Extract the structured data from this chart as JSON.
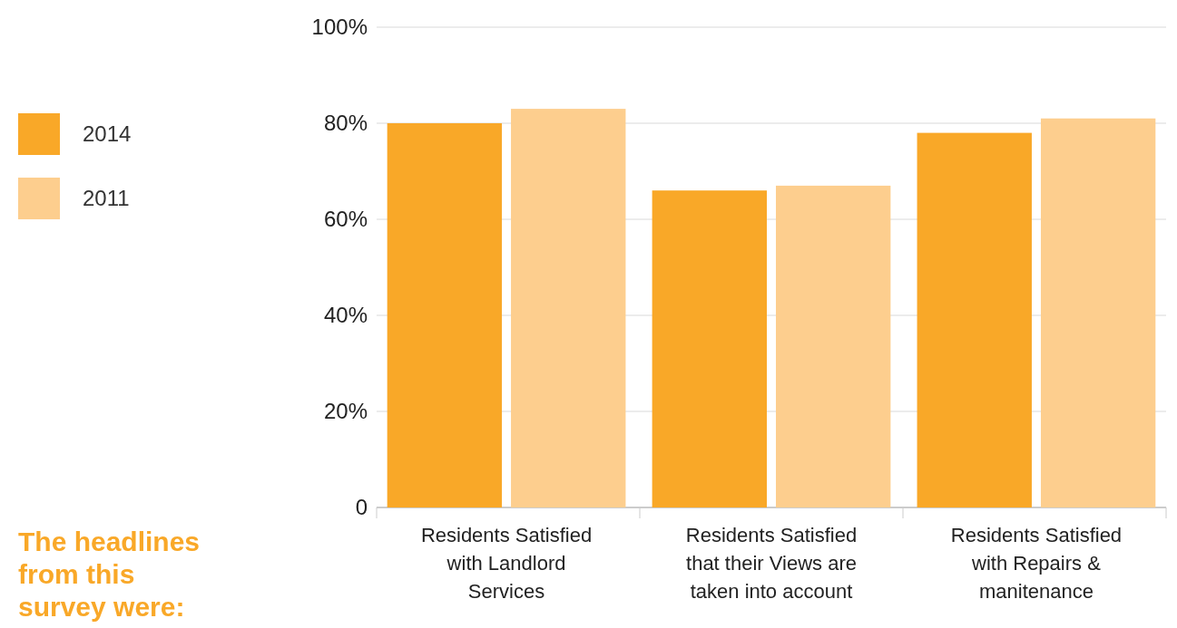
{
  "chart_data": {
    "type": "bar",
    "categories": [
      "Residents Satisfied with Landlord Services",
      "Residents Satisfied that their Views are taken into account",
      "Residents Satisfied with Repairs & manitenance"
    ],
    "series": [
      {
        "name": "2014",
        "color": "#f9a828",
        "values": [
          80,
          66,
          78
        ]
      },
      {
        "name": "2011",
        "color": "#fdce8e",
        "values": [
          83,
          67,
          81
        ]
      }
    ],
    "ylim": [
      0,
      100
    ],
    "yticks": [
      {
        "value": 0,
        "label": "0"
      },
      {
        "value": 20,
        "label": "20%"
      },
      {
        "value": 40,
        "label": "40%"
      },
      {
        "value": 60,
        "label": "60%"
      },
      {
        "value": 80,
        "label": "80%"
      },
      {
        "value": 100,
        "label": "100%"
      }
    ],
    "grid": "y",
    "legend": "top left",
    "annotations": [
      "The headlines from this survey were:"
    ]
  }
}
